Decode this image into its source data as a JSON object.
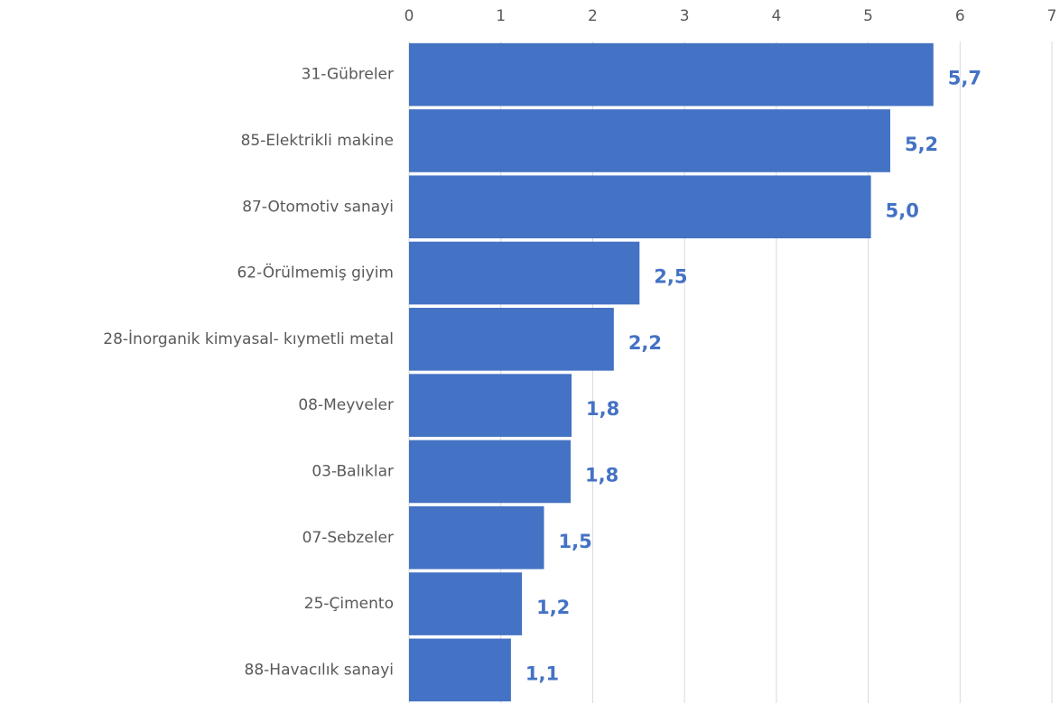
{
  "chart_data": {
    "type": "bar",
    "orientation": "horizontal",
    "categories": [
      "31-Gübreler",
      "85-Elektrikli makine",
      "87-Otomotiv sanayi",
      "62-Örülmemiş giyim",
      "28-İnorganik kimyasal- kıymetli metal",
      "08-Meyveler",
      "03-Balıklar",
      "07-Sebzeler",
      "25-Çimento",
      "88-Havacılık sanayi"
    ],
    "values": [
      5.71,
      5.24,
      5.03,
      2.51,
      2.23,
      1.77,
      1.76,
      1.47,
      1.23,
      1.11
    ],
    "value_labels": [
      "5,7",
      "5,2",
      "5,0",
      "2,5",
      "2,2",
      "1,8",
      "1,8",
      "1,5",
      "1,2",
      "1,1"
    ],
    "color": "#4472c4",
    "xlim": [
      0,
      7
    ],
    "xticks": [
      0,
      1,
      2,
      3,
      4,
      5,
      6,
      7
    ],
    "grid": true
  }
}
